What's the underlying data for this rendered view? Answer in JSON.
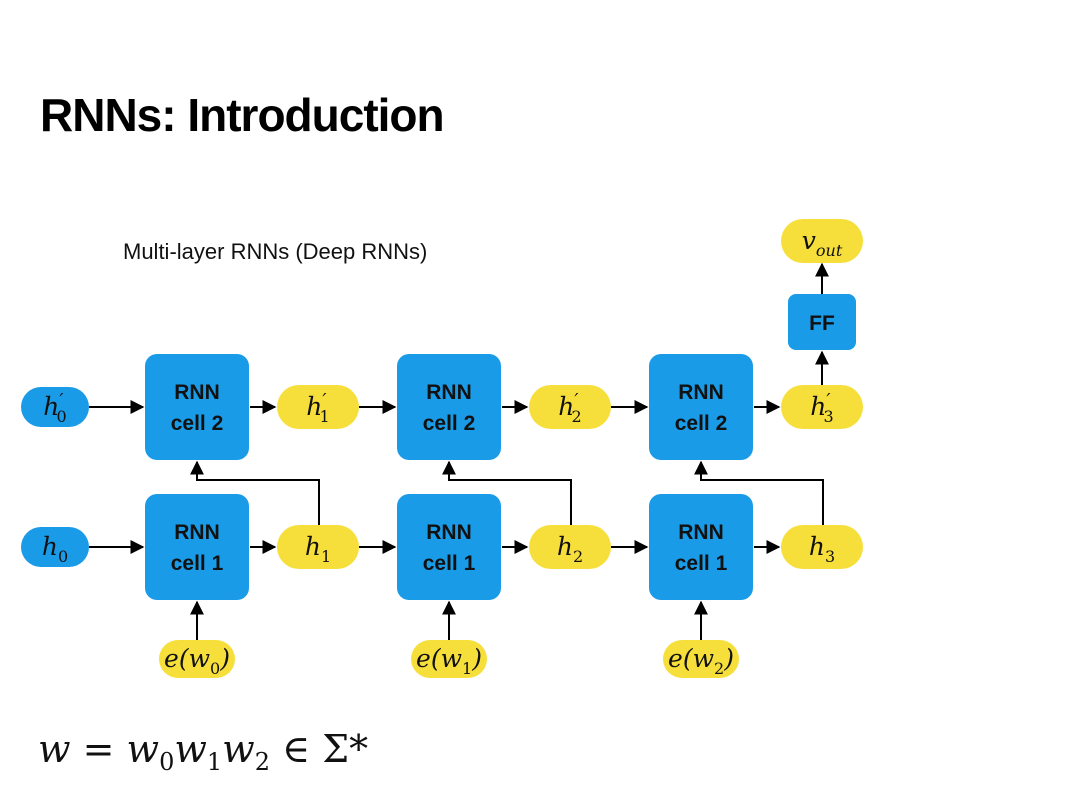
{
  "title": "RNNs: Introduction",
  "caption": "Multi-layer RNNs (Deep RNNs)",
  "colors": {
    "cell": "#1a9be8",
    "state": "#f7df3b",
    "line": "#000000"
  },
  "cells": {
    "layer2": {
      "line1": "RNN",
      "line2": "cell 2"
    },
    "layer1": {
      "line1": "RNN",
      "line2": "cell 1"
    }
  },
  "ff_label": "FF",
  "output": {
    "base": "v",
    "sub": "out"
  },
  "initial_states": {
    "layer2": {
      "base": "h",
      "prime": "′",
      "sub": "0"
    },
    "layer1": {
      "base": "h",
      "sub": "0"
    }
  },
  "states_layer2": [
    {
      "base": "h",
      "prime": "′",
      "sub": "1"
    },
    {
      "base": "h",
      "prime": "′",
      "sub": "2"
    },
    {
      "base": "h",
      "prime": "′",
      "sub": "3"
    }
  ],
  "states_layer1": [
    {
      "base": "h",
      "sub": "1"
    },
    {
      "base": "h",
      "sub": "2"
    },
    {
      "base": "h",
      "sub": "3"
    }
  ],
  "inputs": [
    {
      "pre": "e(w",
      "sub": "0",
      "post": ")"
    },
    {
      "pre": "e(w",
      "sub": "1",
      "post": ")"
    },
    {
      "pre": "e(w",
      "sub": "2",
      "post": ")"
    }
  ],
  "formula": "w = w₀w₁w₂ ∈ Σ*"
}
